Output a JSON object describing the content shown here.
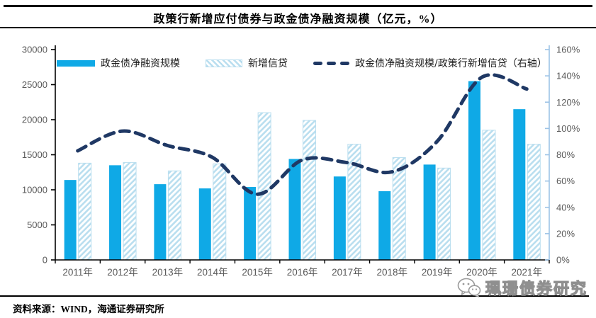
{
  "title": "政策行新增应付债券与政金债净融资规模（亿元，%）",
  "footer": {
    "source_label": "资料来源：WIND，海通证券研究所"
  },
  "watermark": {
    "icon": "wechat-icon",
    "text": "珮珊债券研究"
  },
  "colors": {
    "bar_solid": "#0FA9E6",
    "bar_hatch": "#B9DEEF",
    "line_dash": "#1F3864",
    "axis_left": "#000000",
    "axis_right": "#9DC3E6",
    "tick_label": "#595959"
  },
  "chart_data": {
    "type": "bar",
    "title": "政策行新增应付债券与政金债净融资规模（亿元，%）",
    "categories": [
      "2011年",
      "2012年",
      "2013年",
      "2014年",
      "2015年",
      "2016年",
      "2017年",
      "2018年",
      "2019年",
      "2020年",
      "2021年"
    ],
    "series": [
      {
        "name": "政金债净融资规模",
        "type": "bar",
        "style": "solid",
        "axis": "left",
        "values": [
          11400,
          13500,
          10800,
          10200,
          10400,
          14400,
          11900,
          9800,
          13600,
          25500,
          21500
        ]
      },
      {
        "name": "新增信贷",
        "type": "bar",
        "style": "hatched",
        "axis": "left",
        "values": [
          13800,
          13900,
          12700,
          13700,
          21000,
          19900,
          16500,
          14600,
          13100,
          18500,
          16500
        ]
      },
      {
        "name": "政金债净融资规模/政策行新增信贷（右轴）",
        "type": "line",
        "style": "dashed",
        "axis": "right",
        "values": [
          83,
          98,
          87,
          78,
          50,
          76,
          74,
          67,
          90,
          139,
          130
        ]
      }
    ],
    "left_axis": {
      "min": 0,
      "max": 30000,
      "step": 5000,
      "tick_labels": [
        "0",
        "5000",
        "10000",
        "15000",
        "20000",
        "25000",
        "30000"
      ]
    },
    "right_axis": {
      "min": 0,
      "max": 160,
      "step": 20,
      "tick_labels": [
        "0%",
        "20%",
        "40%",
        "60%",
        "80%",
        "100%",
        "120%",
        "140%",
        "160%"
      ]
    },
    "legend_position": "top",
    "grid": false
  }
}
